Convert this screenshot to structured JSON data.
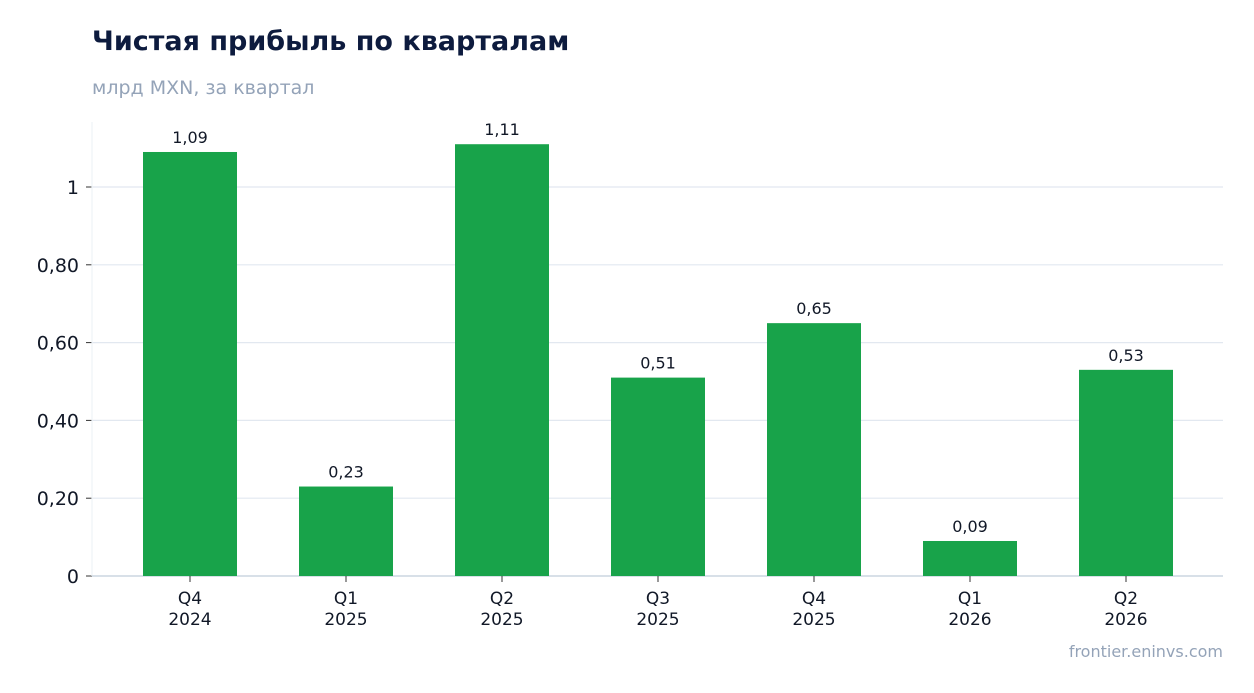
{
  "header": {
    "title": "Чистая прибыль по кварталам",
    "subtitle": "млрд MXN, за квартал"
  },
  "footer": {
    "source": "frontier.eninvs.com"
  },
  "colors": {
    "bar": "#18a34a",
    "grid": "#e2e8f0",
    "axis": "#cbd5e1",
    "text": "#111827",
    "muted": "#94a3b8"
  },
  "chart_data": {
    "type": "bar",
    "categories": [
      [
        "Q4",
        "2024"
      ],
      [
        "Q1",
        "2025"
      ],
      [
        "Q2",
        "2025"
      ],
      [
        "Q3",
        "2025"
      ],
      [
        "Q4",
        "2025"
      ],
      [
        "Q1",
        "2026"
      ],
      [
        "Q2",
        "2026"
      ]
    ],
    "values": [
      1.09,
      0.23,
      1.11,
      0.51,
      0.65,
      0.09,
      0.53
    ],
    "value_labels": [
      "1,09",
      "0,23",
      "1,11",
      "0,51",
      "0,65",
      "0,09",
      "0,53"
    ],
    "yticks": [
      0,
      0.2,
      0.4,
      0.6,
      0.8,
      1
    ],
    "ytick_labels": [
      "0",
      "0,20",
      "0,40",
      "0,60",
      "0,80",
      "1"
    ],
    "ylim": [
      0,
      1.17
    ],
    "grid": true,
    "legend": false
  }
}
